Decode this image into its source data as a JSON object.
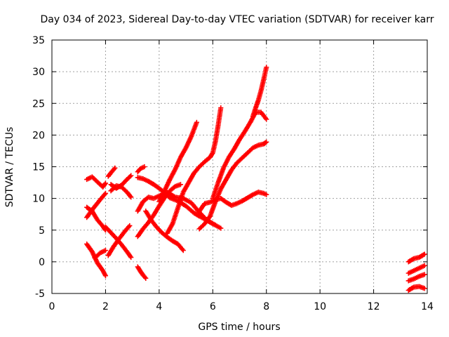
{
  "chart_data": {
    "type": "scatter",
    "title": "Day 034 of 2023, Sidereal Day-to-day VTEC variation (SDTVAR) for receiver karr",
    "xlabel": "GPS time / hours",
    "ylabel": "SDTVAR / TECUs",
    "xlim": [
      0,
      14
    ],
    "ylim": [
      -5,
      35
    ],
    "xticks": [
      0,
      2,
      4,
      6,
      8,
      10,
      12,
      14
    ],
    "yticks": [
      -5,
      0,
      5,
      10,
      15,
      20,
      25,
      30,
      35
    ],
    "grid": true,
    "marker": "+",
    "color": "#ff0000",
    "series": [
      {
        "x": [
          1.3,
          1.5,
          1.7,
          1.9,
          2.0
        ],
        "y": [
          13.0,
          13.4,
          12.6,
          11.8,
          12.4
        ]
      },
      {
        "x": [
          1.3,
          1.5,
          1.65,
          1.8,
          2.0
        ],
        "y": [
          7.0,
          8.2,
          9.0,
          9.8,
          10.8
        ]
      },
      {
        "x": [
          1.3,
          1.5,
          1.7,
          1.9,
          2.0
        ],
        "y": [
          8.6,
          8.0,
          6.6,
          5.6,
          5.0
        ]
      },
      {
        "x": [
          1.3,
          1.5,
          1.7,
          1.9,
          2.0
        ],
        "y": [
          2.8,
          1.6,
          -0.2,
          -1.4,
          -2.2
        ]
      },
      {
        "x": [
          1.6,
          1.8,
          2.0
        ],
        "y": [
          0.6,
          1.4,
          1.8
        ]
      },
      {
        "x": [
          2.1,
          2.25,
          2.35
        ],
        "y": [
          13.5,
          14.3,
          14.8
        ]
      },
      {
        "x": [
          2.2,
          2.4,
          2.6,
          2.8,
          2.95
        ],
        "y": [
          12.2,
          11.6,
          12.1,
          13.0,
          13.6
        ]
      },
      {
        "x": [
          2.2,
          2.4,
          2.6,
          2.8,
          2.95
        ],
        "y": [
          11.2,
          12.0,
          11.8,
          11.0,
          10.2
        ]
      },
      {
        "x": [
          2.0,
          2.2,
          2.4,
          2.6,
          2.8,
          2.95
        ],
        "y": [
          5.5,
          4.6,
          3.7,
          2.7,
          1.6,
          0.7
        ]
      },
      {
        "x": [
          2.1,
          2.3,
          2.5,
          2.7,
          2.9
        ],
        "y": [
          1.0,
          2.4,
          3.6,
          4.7,
          5.7
        ]
      },
      {
        "x": [
          3.2,
          3.3,
          3.45
        ],
        "y": [
          14.2,
          14.7,
          15.0
        ]
      },
      {
        "x": [
          3.2,
          3.4,
          3.6,
          3.8,
          4.0,
          4.2,
          4.4,
          4.7,
          5.0,
          5.3,
          5.5,
          5.8,
          6.1
        ],
        "y": [
          13.3,
          13.1,
          12.7,
          12.2,
          11.6,
          10.9,
          10.1,
          9.6,
          8.8,
          7.7,
          7.2,
          6.5,
          5.8
        ]
      },
      {
        "x": [
          3.2,
          3.4,
          3.6,
          3.8,
          4.0,
          4.3,
          4.6,
          4.9,
          5.2,
          5.5,
          5.8,
          6.0,
          6.3
        ],
        "y": [
          8.0,
          9.5,
          10.2,
          10.0,
          10.4,
          11.0,
          10.2,
          10.0,
          9.3,
          7.8,
          6.5,
          6.0,
          5.3
        ]
      },
      {
        "x": [
          3.2,
          3.4,
          3.6,
          3.8,
          4.0,
          4.2,
          4.4,
          4.6,
          4.8
        ],
        "y": [
          4.0,
          5.2,
          6.2,
          7.4,
          8.8,
          10.1,
          11.2,
          11.9,
          12.2
        ]
      },
      {
        "x": [
          3.5,
          3.7,
          3.9,
          4.1,
          4.3,
          4.5,
          4.7,
          4.9
        ],
        "y": [
          8.0,
          6.6,
          5.5,
          4.6,
          3.9,
          3.3,
          2.8,
          1.8
        ]
      },
      {
        "x": [
          3.2,
          3.3,
          3.4,
          3.5
        ],
        "y": [
          -0.8,
          -1.5,
          -2.1,
          -2.6
        ]
      },
      {
        "x": [
          4.0,
          4.2,
          4.4,
          4.6,
          4.8,
          5.0,
          5.2,
          5.4
        ],
        "y": [
          9.5,
          11.2,
          13.0,
          14.6,
          16.5,
          18.0,
          19.8,
          22.0
        ]
      },
      {
        "x": [
          4.3,
          4.5,
          4.7,
          4.9,
          5.1,
          5.3,
          5.5,
          5.7,
          5.9,
          6.0,
          6.1,
          6.2,
          6.3
        ],
        "y": [
          4.5,
          6.0,
          8.5,
          11.0,
          12.5,
          14.0,
          15.0,
          15.8,
          16.5,
          17.2,
          19.0,
          21.5,
          24.3
        ]
      },
      {
        "x": [
          5.5,
          5.7,
          5.9,
          6.1,
          6.3,
          6.5,
          6.7,
          6.9,
          7.1,
          7.3,
          7.5,
          7.7,
          7.9,
          8.0
        ],
        "y": [
          8.0,
          9.2,
          9.4,
          9.8,
          10.0,
          9.4,
          8.9,
          9.2,
          9.6,
          10.1,
          10.6,
          11.0,
          10.8,
          10.6
        ]
      },
      {
        "x": [
          5.5,
          5.7,
          5.9,
          6.1,
          6.3,
          6.5,
          6.7,
          6.9,
          7.1,
          7.3,
          7.5,
          7.7,
          7.9,
          8.0
        ],
        "y": [
          5.2,
          6.0,
          7.2,
          9.5,
          11.5,
          13.0,
          14.5,
          15.6,
          16.4,
          17.2,
          18.0,
          18.4,
          18.6,
          18.9
        ]
      },
      {
        "x": [
          6.0,
          6.2,
          6.4,
          6.6,
          6.8,
          7.0,
          7.2,
          7.4,
          7.6,
          7.8,
          8.0
        ],
        "y": [
          10.0,
          12.5,
          14.8,
          16.5,
          17.8,
          19.3,
          20.6,
          22.0,
          23.6,
          23.6,
          22.5
        ]
      },
      {
        "x": [
          7.5,
          7.6,
          7.7,
          7.8,
          7.9,
          8.0
        ],
        "y": [
          23.0,
          24.3,
          25.5,
          27.0,
          28.8,
          30.7
        ]
      },
      {
        "x": [
          13.3,
          13.5,
          13.7,
          13.9
        ],
        "y": [
          0.0,
          0.5,
          0.7,
          1.2
        ]
      },
      {
        "x": [
          13.3,
          13.5,
          13.7,
          13.9
        ],
        "y": [
          -1.8,
          -1.4,
          -1.0,
          -0.6
        ]
      },
      {
        "x": [
          13.3,
          13.5,
          13.7,
          13.9
        ],
        "y": [
          -3.0,
          -2.7,
          -2.3,
          -2.0
        ]
      },
      {
        "x": [
          13.3,
          13.5,
          13.7,
          13.9
        ],
        "y": [
          -4.5,
          -4.0,
          -3.9,
          -4.2
        ]
      }
    ]
  }
}
